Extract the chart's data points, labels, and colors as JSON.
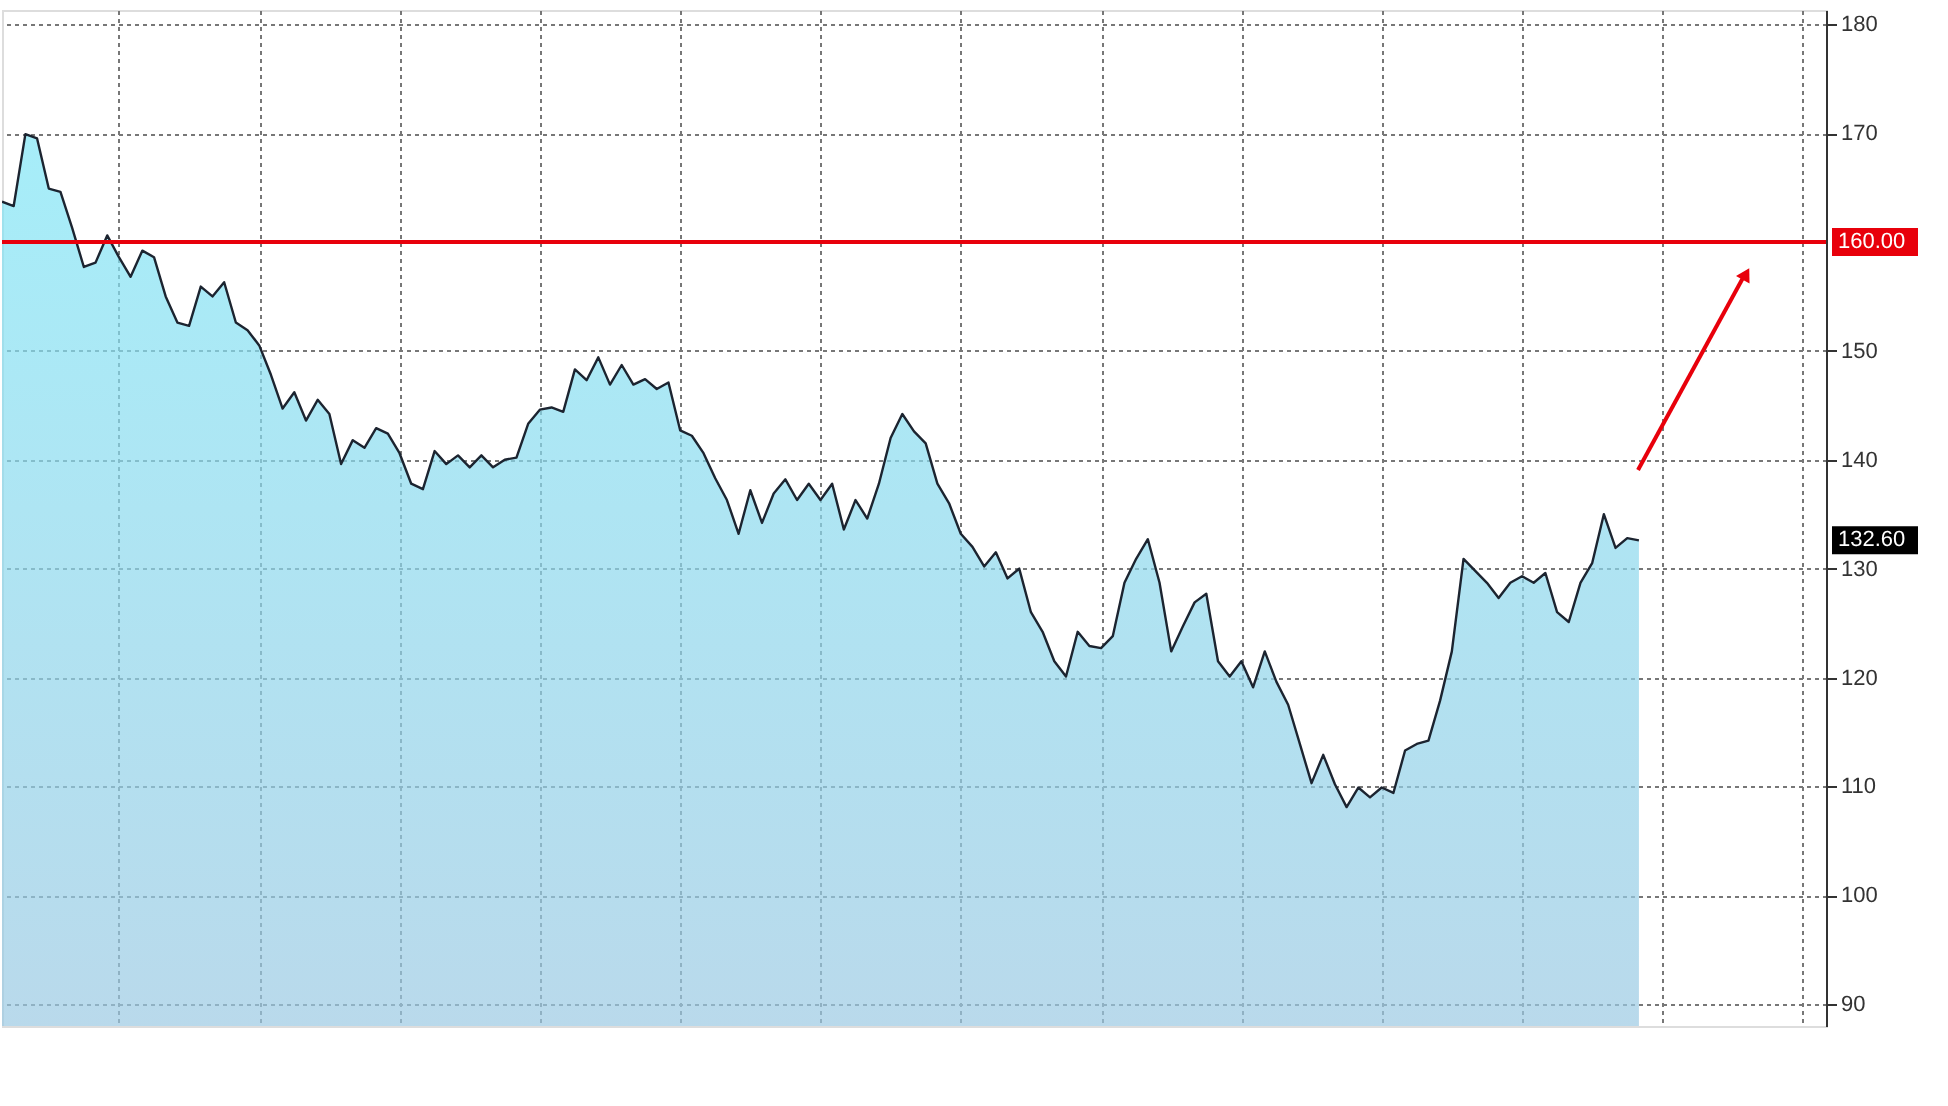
{
  "chart_data": {
    "type": "area",
    "categories": [
      null,
      null,
      null,
      null,
      null,
      null,
      null,
      null,
      null,
      null,
      null,
      null,
      null,
      null,
      null,
      null,
      null,
      null,
      null,
      null,
      null,
      null,
      null,
      null,
      null,
      null,
      null,
      null,
      null,
      null,
      null,
      null,
      null,
      null,
      null,
      null,
      null,
      null,
      null,
      null,
      null,
      null,
      null,
      null,
      null,
      null,
      null,
      null,
      null,
      null,
      null,
      null,
      null,
      null,
      null,
      null,
      null,
      null,
      null,
      null,
      null,
      null,
      null,
      null,
      null,
      null,
      null,
      null,
      null,
      null,
      null,
      null,
      null,
      null,
      null,
      null,
      null,
      null,
      null,
      null,
      null,
      null,
      null,
      null,
      null,
      null,
      null,
      null,
      null,
      null,
      null,
      null,
      null,
      null,
      null,
      null,
      null,
      null,
      null,
      null,
      null,
      null,
      null,
      null,
      null,
      null,
      null,
      null,
      null,
      null,
      null,
      null,
      null,
      null,
      null,
      null,
      null,
      null,
      null,
      null,
      null,
      null,
      null,
      null,
      null,
      null,
      null,
      null,
      null,
      null,
      null,
      null,
      null,
      null,
      null,
      null,
      null,
      null,
      null,
      null,
      null,
      null,
      null,
      null,
      null,
      null,
      null,
      null,
      null,
      null,
      null,
      null,
      null,
      null,
      null,
      null,
      null
    ],
    "series": [
      {
        "color": "#9cc8e2",
        "values": [
          163.7,
          163.3,
          169.9,
          169.5,
          164.9,
          164.6,
          161.3,
          157.7,
          158.1,
          160.6,
          158.6,
          156.8,
          159.2,
          158.6,
          155,
          152.6,
          152.3,
          155.9,
          155,
          156.3,
          152.6,
          151.9,
          150.5,
          147.8,
          144.7,
          146.2,
          143.6,
          145.5,
          144.2,
          139.6,
          141.8,
          141.1,
          142.9,
          142.4,
          140.6,
          137.8,
          137.3,
          140.8,
          139.6,
          140.4,
          139.3,
          140.4,
          139.3,
          140,
          140.2,
          143.3,
          144.6,
          144.8,
          144.4,
          148.3,
          147.3,
          149.4,
          146.9,
          148.7,
          146.9,
          147.4,
          146.5,
          147.1,
          142.7,
          142.2,
          140.6,
          138.3,
          136.3,
          133.2,
          137.2,
          134.2,
          136.9,
          138.2,
          136.3,
          137.8,
          136.3,
          137.8,
          133.6,
          136.3,
          134.6,
          137.8,
          142,
          144.2,
          142.6,
          141.5,
          137.8,
          136,
          133.2,
          132,
          130.2,
          131.5,
          129.1,
          130,
          126,
          124.2,
          121.5,
          120.1,
          124.2,
          122.9,
          122.7,
          123.8,
          128.7,
          130.9,
          132.7,
          128.7,
          122.4,
          124.7,
          126.9,
          127.7,
          121.5,
          120.1,
          121.5,
          119.1,
          122.4,
          119.6,
          117.5,
          113.9,
          110.3,
          112.9,
          110.2,
          108.1,
          109.9,
          109,
          109.9,
          109.4,
          113.3,
          113.9,
          114.2,
          117.9,
          122.4,
          130.9,
          129.8,
          128.7,
          127.3,
          128.7,
          129.3,
          128.7,
          129.6,
          126,
          125.1,
          128.7,
          130.5,
          135,
          131.9,
          132.8,
          132.6,
          null,
          null,
          null,
          null,
          null,
          null,
          null,
          null,
          null,
          null,
          null,
          null,
          null,
          null,
          null,
          null
        ]
      }
    ],
    "ylim": [
      88,
      181.3
    ],
    "yticks": [
      90,
      100,
      110,
      120,
      130,
      140,
      150,
      170,
      180
    ],
    "grid": true,
    "ref_lines": [
      {
        "axis": "y",
        "value": 160,
        "label": "160.00",
        "color": "#e8000b"
      }
    ],
    "annotations": [
      {
        "text": "132.60",
        "y": 132.6
      }
    ]
  }
}
